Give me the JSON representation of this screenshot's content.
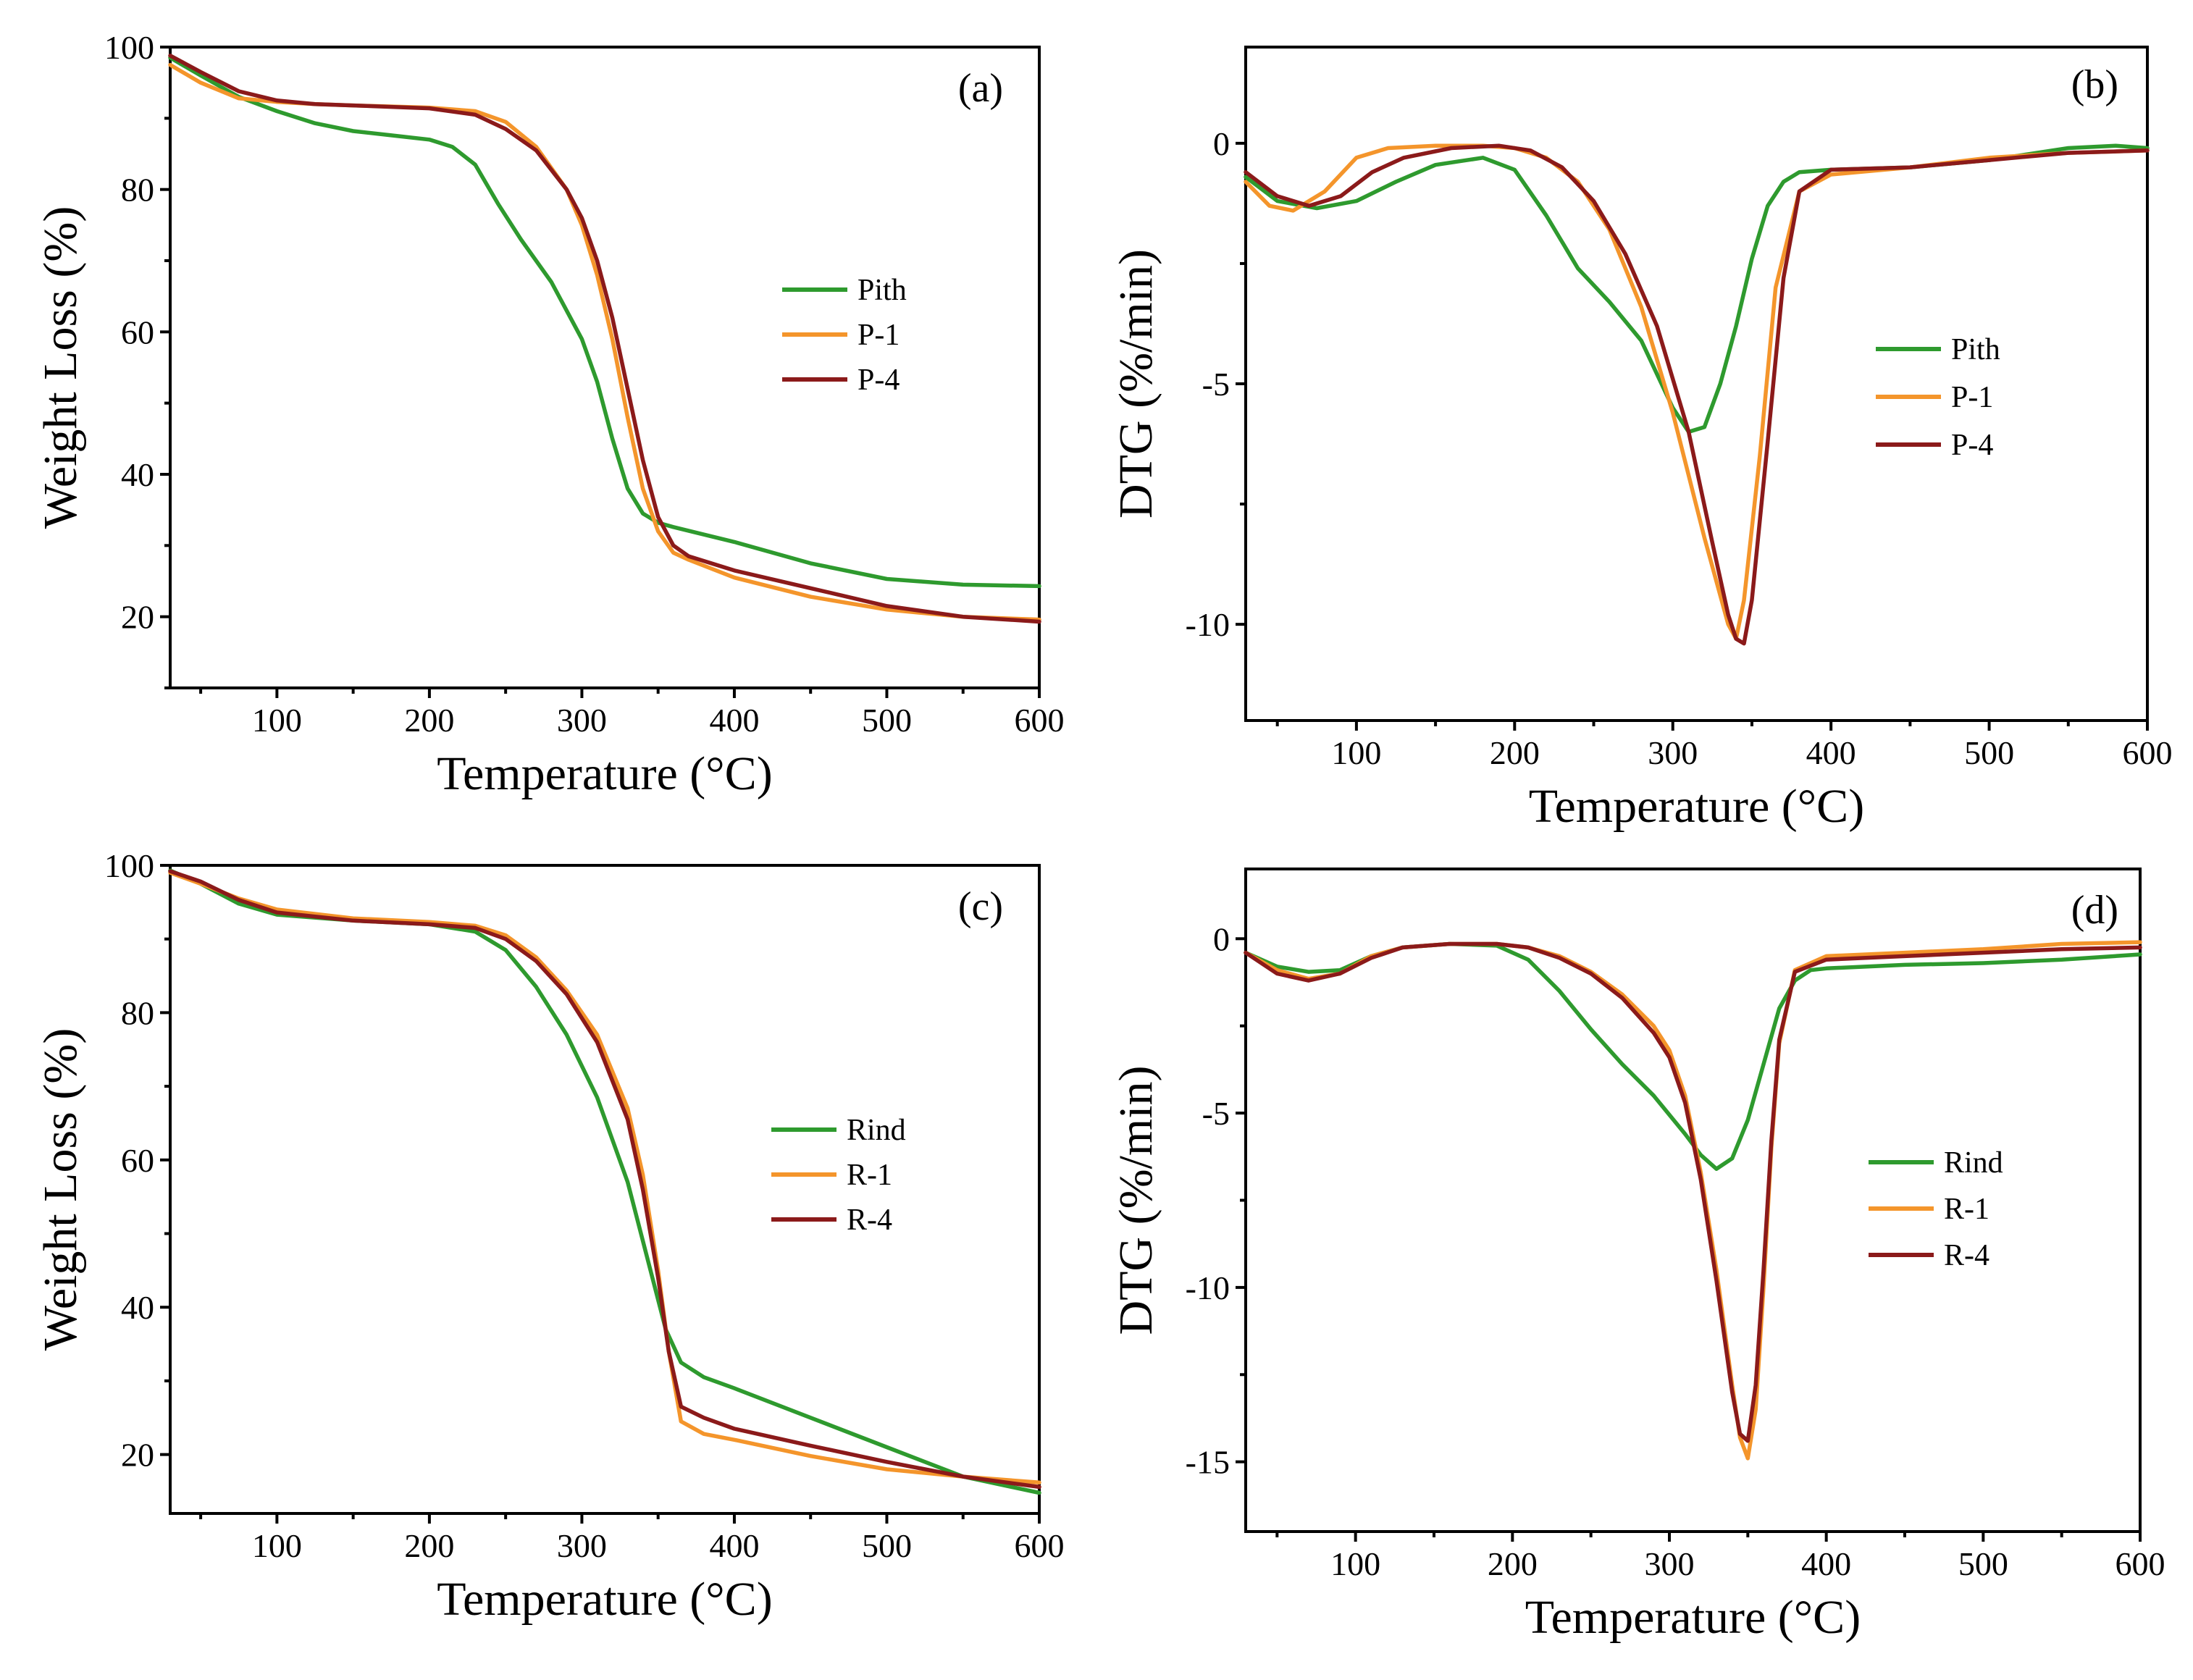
{
  "colors": {
    "green": "#2e9a2e",
    "orange": "#f4952b",
    "darkred": "#8b1a1a"
  },
  "chart_data": [
    {
      "id": "a",
      "panel_label": "(a)",
      "type": "line",
      "xlabel": "Temperature (°C)",
      "ylabel": "Weight Loss (%)",
      "xlim": [
        30,
        600
      ],
      "ylim": [
        10,
        100
      ],
      "xticks": [
        100,
        200,
        300,
        400,
        500,
        600
      ],
      "yticks": [
        20,
        40,
        60,
        80,
        100
      ],
      "legend_position": "center-right",
      "series": [
        {
          "name": "Pith",
          "color": "#2e9a2e",
          "x": [
            30,
            50,
            75,
            100,
            125,
            150,
            175,
            200,
            215,
            230,
            245,
            260,
            280,
            300,
            310,
            320,
            330,
            340,
            350,
            360,
            375,
            400,
            450,
            500,
            550,
            600
          ],
          "y": [
            98.5,
            96,
            93,
            91,
            89.3,
            88.2,
            87.6,
            87,
            86,
            83.5,
            78,
            73,
            67,
            59,
            53,
            45,
            38,
            34.5,
            33.2,
            32.6,
            31.8,
            30.5,
            27.5,
            25.3,
            24.5,
            24.3
          ]
        },
        {
          "name": "P-1",
          "color": "#f4952b",
          "x": [
            30,
            50,
            75,
            100,
            125,
            150,
            200,
            230,
            250,
            270,
            290,
            300,
            310,
            320,
            330,
            340,
            350,
            360,
            370,
            400,
            450,
            500,
            550,
            600
          ],
          "y": [
            97.5,
            95,
            92.8,
            92.3,
            92,
            91.8,
            91.5,
            91,
            89.5,
            86,
            80,
            75,
            68,
            59,
            48,
            38,
            32,
            29,
            28,
            25.5,
            22.8,
            21,
            20,
            19.6
          ]
        },
        {
          "name": "P-4",
          "color": "#8b1a1a",
          "x": [
            30,
            50,
            75,
            100,
            125,
            150,
            200,
            230,
            250,
            270,
            290,
            300,
            310,
            320,
            330,
            340,
            350,
            360,
            370,
            400,
            450,
            500,
            550,
            600
          ],
          "y": [
            98.8,
            96.5,
            93.8,
            92.5,
            92,
            91.8,
            91.4,
            90.5,
            88.5,
            85.5,
            80,
            76,
            70,
            62,
            52,
            42,
            34,
            30,
            28.5,
            26.5,
            24,
            21.5,
            20,
            19.3
          ]
        }
      ]
    },
    {
      "id": "b",
      "panel_label": "(b)",
      "type": "line",
      "xlabel": "Temperature (°C)",
      "ylabel": "DTG (%/min)",
      "xlim": [
        30,
        600
      ],
      "ylim": [
        -12,
        2
      ],
      "xticks": [
        100,
        200,
        300,
        400,
        500,
        600
      ],
      "yticks": [
        0,
        -5,
        -10
      ],
      "legend_position": "center-right",
      "series": [
        {
          "name": "Pith",
          "color": "#2e9a2e",
          "x": [
            30,
            50,
            75,
            100,
            125,
            150,
            180,
            200,
            220,
            240,
            260,
            280,
            300,
            310,
            320,
            330,
            340,
            350,
            360,
            370,
            380,
            400,
            450,
            500,
            550,
            580,
            600
          ],
          "y": [
            -0.7,
            -1.2,
            -1.35,
            -1.2,
            -0.8,
            -0.45,
            -0.3,
            -0.55,
            -1.5,
            -2.6,
            -3.3,
            -4.1,
            -5.5,
            -6.0,
            -5.9,
            -5.0,
            -3.8,
            -2.4,
            -1.3,
            -0.8,
            -0.6,
            -0.55,
            -0.5,
            -0.35,
            -0.1,
            -0.05,
            -0.1
          ]
        },
        {
          "name": "P-1",
          "color": "#f4952b",
          "x": [
            30,
            45,
            60,
            80,
            100,
            120,
            150,
            180,
            200,
            220,
            240,
            260,
            280,
            300,
            320,
            335,
            340,
            345,
            355,
            365,
            380,
            400,
            450,
            500,
            550,
            600
          ],
          "y": [
            -0.8,
            -1.3,
            -1.4,
            -1.0,
            -0.3,
            -0.1,
            -0.05,
            -0.05,
            -0.1,
            -0.3,
            -0.8,
            -1.8,
            -3.4,
            -5.6,
            -8.2,
            -10.0,
            -10.3,
            -9.5,
            -6.5,
            -3.0,
            -1.0,
            -0.65,
            -0.5,
            -0.3,
            -0.2,
            -0.15
          ]
        },
        {
          "name": "P-4",
          "color": "#8b1a1a",
          "x": [
            30,
            50,
            70,
            90,
            110,
            130,
            160,
            190,
            210,
            230,
            250,
            270,
            290,
            310,
            325,
            335,
            340,
            345,
            350,
            360,
            370,
            380,
            400,
            450,
            500,
            550,
            600
          ],
          "y": [
            -0.6,
            -1.1,
            -1.3,
            -1.1,
            -0.6,
            -0.3,
            -0.1,
            -0.05,
            -0.15,
            -0.5,
            -1.2,
            -2.3,
            -3.8,
            -6.0,
            -8.3,
            -9.8,
            -10.3,
            -10.4,
            -9.5,
            -6.2,
            -2.8,
            -1.0,
            -0.55,
            -0.5,
            -0.35,
            -0.2,
            -0.15
          ]
        }
      ]
    },
    {
      "id": "c",
      "panel_label": "(c)",
      "type": "line",
      "xlabel": "Temperature (°C)",
      "ylabel": "Weight Loss (%)",
      "xlim": [
        30,
        600
      ],
      "ylim": [
        12,
        100
      ],
      "xticks": [
        100,
        200,
        300,
        400,
        500,
        600
      ],
      "yticks": [
        20,
        40,
        60,
        80,
        100
      ],
      "legend_position": "center-right",
      "series": [
        {
          "name": "Rind",
          "color": "#2e9a2e",
          "x": [
            30,
            50,
            75,
            100,
            150,
            200,
            230,
            250,
            270,
            290,
            310,
            330,
            345,
            355,
            365,
            380,
            400,
            450,
            500,
            550,
            600
          ],
          "y": [
            99.3,
            97.5,
            94.8,
            93.3,
            92.5,
            92,
            91,
            88.5,
            83.5,
            77,
            68.5,
            57,
            45,
            37,
            32.5,
            30.5,
            29,
            25,
            21,
            17,
            14.8
          ]
        },
        {
          "name": "R-1",
          "color": "#f4952b",
          "x": [
            30,
            50,
            75,
            100,
            150,
            200,
            230,
            250,
            270,
            290,
            310,
            330,
            340,
            350,
            357,
            365,
            380,
            400,
            450,
            500,
            550,
            600
          ],
          "y": [
            99,
            97.5,
            95.5,
            94,
            92.8,
            92.3,
            91.8,
            90.5,
            87.5,
            83,
            77,
            67,
            58,
            45,
            34,
            24.5,
            22.8,
            22,
            19.8,
            18,
            17,
            16.2
          ]
        },
        {
          "name": "R-4",
          "color": "#8b1a1a",
          "x": [
            30,
            50,
            75,
            100,
            150,
            200,
            230,
            250,
            270,
            290,
            310,
            330,
            340,
            350,
            357,
            365,
            380,
            400,
            450,
            500,
            550,
            600
          ],
          "y": [
            99.2,
            97.8,
            95.3,
            93.6,
            92.5,
            92,
            91.5,
            90,
            87,
            82.5,
            76,
            65.5,
            56,
            44,
            34,
            26.5,
            25,
            23.5,
            21.2,
            19,
            17,
            15.6
          ]
        }
      ]
    },
    {
      "id": "d",
      "panel_label": "(d)",
      "type": "line",
      "xlabel": "Temperature (°C)",
      "ylabel": "DTG (%/min)",
      "xlim": [
        30,
        600
      ],
      "ylim": [
        -17,
        2
      ],
      "xticks": [
        100,
        200,
        300,
        400,
        500,
        600
      ],
      "yticks": [
        0,
        -5,
        -10,
        -15
      ],
      "legend_position": "center-right",
      "series": [
        {
          "name": "Rind",
          "color": "#2e9a2e",
          "x": [
            30,
            50,
            70,
            90,
            110,
            130,
            160,
            190,
            210,
            230,
            250,
            270,
            290,
            310,
            320,
            330,
            340,
            350,
            360,
            370,
            380,
            390,
            400,
            450,
            500,
            550,
            600
          ],
          "y": [
            -0.4,
            -0.8,
            -0.95,
            -0.9,
            -0.5,
            -0.25,
            -0.15,
            -0.2,
            -0.6,
            -1.5,
            -2.6,
            -3.6,
            -4.5,
            -5.6,
            -6.2,
            -6.6,
            -6.3,
            -5.2,
            -3.6,
            -2.0,
            -1.2,
            -0.9,
            -0.85,
            -0.75,
            -0.7,
            -0.6,
            -0.45
          ]
        },
        {
          "name": "R-1",
          "color": "#f4952b",
          "x": [
            30,
            50,
            70,
            90,
            110,
            130,
            160,
            190,
            210,
            230,
            250,
            270,
            290,
            300,
            310,
            320,
            330,
            340,
            345,
            350,
            355,
            360,
            365,
            370,
            380,
            400,
            450,
            500,
            550,
            600
          ],
          "y": [
            -0.4,
            -0.9,
            -1.15,
            -1.0,
            -0.5,
            -0.25,
            -0.15,
            -0.15,
            -0.25,
            -0.5,
            -0.95,
            -1.6,
            -2.5,
            -3.2,
            -4.5,
            -6.7,
            -9.5,
            -12.8,
            -14.3,
            -14.9,
            -13.5,
            -10.0,
            -6.0,
            -3.0,
            -0.9,
            -0.5,
            -0.4,
            -0.3,
            -0.15,
            -0.1
          ]
        },
        {
          "name": "R-4",
          "color": "#8b1a1a",
          "x": [
            30,
            50,
            70,
            90,
            110,
            130,
            160,
            190,
            210,
            230,
            250,
            270,
            290,
            300,
            310,
            320,
            330,
            340,
            345,
            350,
            355,
            360,
            365,
            370,
            380,
            400,
            450,
            500,
            550,
            600
          ],
          "y": [
            -0.4,
            -1.0,
            -1.2,
            -1.0,
            -0.55,
            -0.25,
            -0.15,
            -0.15,
            -0.25,
            -0.55,
            -1.0,
            -1.7,
            -2.7,
            -3.4,
            -4.7,
            -6.9,
            -9.8,
            -13.0,
            -14.2,
            -14.4,
            -12.8,
            -9.5,
            -5.8,
            -2.9,
            -0.95,
            -0.6,
            -0.5,
            -0.4,
            -0.3,
            -0.25
          ]
        }
      ]
    }
  ]
}
